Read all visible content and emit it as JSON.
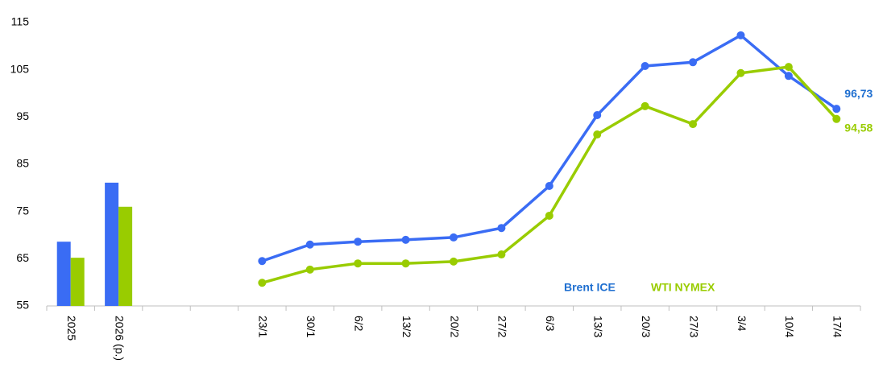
{
  "chart_data": [
    {
      "type": "bar",
      "categories": [
        "2025",
        "2026 (p.)"
      ],
      "series": [
        {
          "color": "#3a6cf4",
          "values": [
            68.6,
            81.1
          ]
        },
        {
          "color": "#99cc00",
          "values": [
            65.2,
            76.0
          ]
        }
      ],
      "ylim": [
        55,
        115
      ],
      "yticks": [
        55,
        65,
        75,
        85,
        95,
        105,
        115
      ]
    },
    {
      "type": "line",
      "categories": [
        "23/1",
        "30/1",
        "6/2",
        "13/2",
        "20/2",
        "27/2",
        "6/3",
        "13/3",
        "20/3",
        "27/3",
        "3/4",
        "10/4",
        "17/4"
      ],
      "series": [
        {
          "name": "Brent ICE",
          "color": "#3a6cf4",
          "label_color": "#1f6fd0",
          "values": [
            64.5,
            68.0,
            68.6,
            69.0,
            69.5,
            71.5,
            80.4,
            95.4,
            105.8,
            106.6,
            112.3,
            103.7,
            96.73
          ],
          "value_labels": [
            null,
            null,
            null,
            null,
            null,
            null,
            null,
            null,
            null,
            null,
            null,
            null,
            "96,73"
          ]
        },
        {
          "name": "WTI NYMEX",
          "color": "#99cc00",
          "label_color": "#99cc00",
          "values": [
            59.9,
            62.7,
            64.0,
            64.0,
            64.4,
            65.9,
            74.1,
            91.3,
            97.3,
            93.5,
            104.3,
            105.6,
            94.58
          ],
          "value_labels": [
            null,
            null,
            null,
            null,
            null,
            null,
            null,
            null,
            null,
            null,
            null,
            null,
            "94,58"
          ]
        }
      ],
      "ylim": [
        55,
        115
      ]
    }
  ]
}
